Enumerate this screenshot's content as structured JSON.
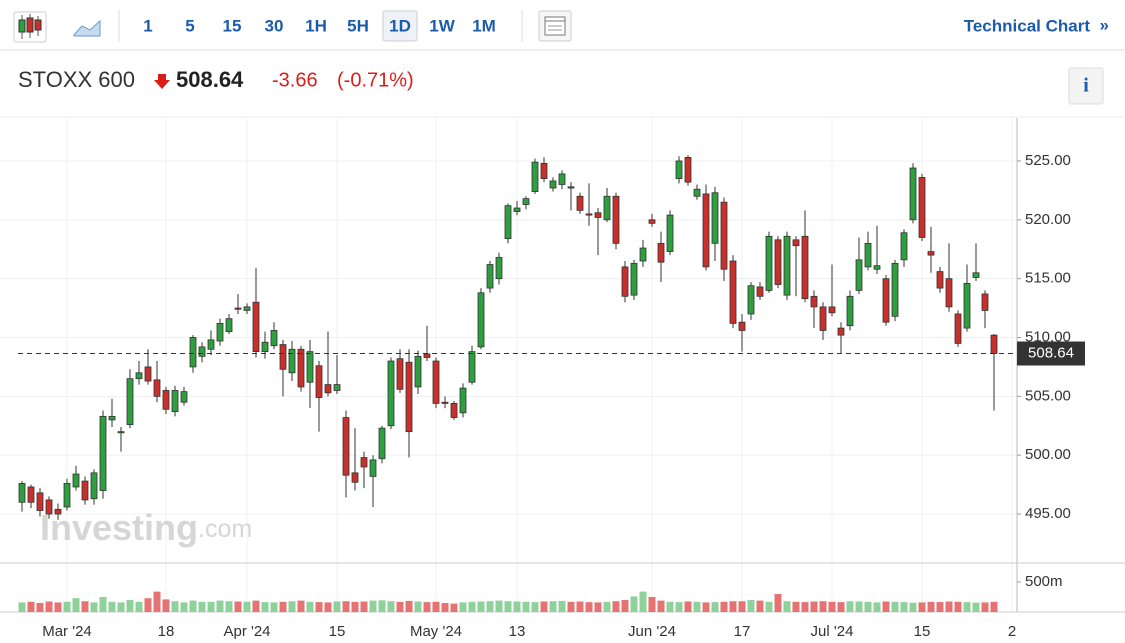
{
  "toolbar": {
    "intervals": [
      "1",
      "5",
      "15",
      "30",
      "1H",
      "5H",
      "1D",
      "1W",
      "1M"
    ],
    "active": "1D",
    "link": "Technical Chart",
    "link_arrow": "»"
  },
  "header": {
    "name": "STOXX 600",
    "price": "508.64",
    "change": "-3.66",
    "change_pct": "(-0.71%)",
    "info": "i"
  },
  "chart_data": {
    "type": "candlestick",
    "watermark": {
      "brand": "Investing",
      "suffix": ".com"
    },
    "up_color": "#2f9e3f",
    "down_color": "#c8302c",
    "volume_up_color": "#8fd19a",
    "volume_down_color": "#e57373",
    "grid": true,
    "last_line": true,
    "categories": [
      null,
      null,
      null,
      null,
      null,
      "Mar '24",
      null,
      null,
      null,
      null,
      null,
      null,
      null,
      null,
      null,
      null,
      "18",
      null,
      null,
      null,
      null,
      null,
      null,
      null,
      null,
      "Apr '24",
      null,
      null,
      null,
      null,
      null,
      null,
      null,
      null,
      null,
      "15",
      null,
      null,
      null,
      null,
      null,
      null,
      null,
      null,
      null,
      null,
      "May '24",
      null,
      null,
      null,
      null,
      null,
      null,
      null,
      null,
      "13",
      null,
      null,
      null,
      null,
      null,
      null,
      null,
      null,
      null,
      null,
      null,
      null,
      null,
      null,
      "Jun '24",
      null,
      null,
      null,
      null,
      null,
      null,
      null,
      null,
      null,
      "17",
      null,
      null,
      null,
      null,
      null,
      null,
      null,
      null,
      null,
      "Jul '24",
      null,
      null,
      null,
      null,
      null,
      null,
      null,
      null,
      null,
      "15",
      null,
      null,
      null,
      null,
      null,
      null,
      null,
      null,
      null,
      "2"
    ],
    "open": [
      496.0,
      497.3,
      496.8,
      496.2,
      495.4,
      495.6,
      497.3,
      497.8,
      496.3,
      497.0,
      503.0,
      501.9,
      502.6,
      506.5,
      507.5,
      506.4,
      505.5,
      503.7,
      504.5,
      507.5,
      508.4,
      509.0,
      509.7,
      510.5,
      512.5,
      512.3,
      513.0,
      508.8,
      509.3,
      509.4,
      507.0,
      509.0,
      506.2,
      507.6,
      506.0,
      505.5,
      503.2,
      498.5,
      499.8,
      498.2,
      499.7,
      502.5,
      508.2,
      507.9,
      505.8,
      508.6,
      508.0,
      504.5,
      504.4,
      503.6,
      506.2,
      509.2,
      514.2,
      515.0,
      518.4,
      520.7,
      521.3,
      522.4,
      524.8,
      522.7,
      523.0,
      522.8,
      522.0,
      520.5,
      520.6,
      520.0,
      522.0,
      516.0,
      513.6,
      516.5,
      520.0,
      518.0,
      517.3,
      523.5,
      525.3,
      522.0,
      522.2,
      518.0,
      521.5,
      516.5,
      511.3,
      512.0,
      514.3,
      514.0,
      518.3,
      513.6,
      518.3,
      518.6,
      513.5,
      512.6,
      512.6,
      510.8,
      511.0,
      514.0,
      516.0,
      515.8,
      515.0,
      511.8,
      516.6,
      520.0,
      523.6,
      517.3,
      515.6,
      515.0,
      512.0,
      510.8,
      515.1,
      513.7,
      510.2,
      null,
      null
    ],
    "high": [
      497.8,
      497.5,
      497.2,
      496.5,
      495.9,
      498.0,
      499.1,
      498.2,
      498.8,
      503.8,
      504.8,
      502.4,
      507.3,
      508.0,
      509.0,
      508.0,
      505.8,
      505.9,
      505.8,
      510.2,
      509.6,
      510.6,
      511.6,
      512.0,
      513.7,
      512.9,
      515.9,
      510.5,
      511.3,
      509.8,
      509.7,
      509.3,
      509.8,
      508.0,
      510.5,
      508.5,
      503.8,
      502.3,
      500.3,
      500.0,
      502.5,
      508.3,
      509.0,
      509.0,
      508.9,
      511.0,
      508.3,
      505.0,
      504.6,
      506.1,
      509.3,
      514.2,
      516.5,
      517.2,
      521.4,
      521.6,
      522.0,
      525.2,
      525.3,
      523.6,
      524.2,
      523.2,
      522.3,
      523.1,
      521.0,
      522.7,
      522.3,
      516.5,
      516.6,
      518.3,
      520.5,
      519.0,
      520.8,
      525.4,
      525.5,
      523.0,
      523.0,
      522.8,
      521.9,
      517.0,
      512.0,
      514.7,
      514.7,
      519.0,
      518.6,
      519.0,
      518.6,
      520.8,
      514.0,
      513.0,
      516.2,
      511.3,
      514.0,
      518.5,
      519.0,
      519.5,
      515.3,
      516.6,
      519.2,
      524.8,
      523.9,
      519.4,
      516.0,
      518.0,
      512.3,
      516.2,
      518.0,
      514.0,
      510.3,
      null,
      null
    ],
    "low": [
      495.2,
      495.5,
      494.8,
      494.6,
      494.5,
      495.3,
      497.0,
      495.8,
      495.8,
      496.3,
      502.4,
      500.3,
      502.3,
      506.0,
      506.0,
      504.5,
      503.5,
      503.3,
      504.2,
      507.0,
      507.9,
      508.5,
      509.3,
      510.3,
      512.0,
      512.0,
      508.3,
      508.2,
      509.0,
      505.0,
      506.3,
      505.4,
      504.0,
      502.0,
      505.0,
      505.2,
      496.4,
      497.0,
      497.2,
      495.6,
      499.3,
      502.2,
      505.3,
      499.8,
      505.2,
      508.0,
      504.0,
      504.0,
      503.0,
      503.2,
      506.0,
      509.0,
      513.8,
      514.5,
      518.0,
      520.4,
      520.9,
      522.2,
      523.2,
      522.4,
      522.6,
      520.8,
      520.5,
      519.5,
      517.0,
      519.8,
      517.5,
      513.0,
      513.2,
      516.0,
      519.4,
      514.7,
      517.0,
      523.1,
      522.9,
      521.7,
      515.7,
      516.5,
      514.8,
      510.8,
      508.8,
      511.5,
      513.2,
      513.8,
      514.2,
      513.2,
      513.5,
      513.0,
      510.8,
      509.8,
      511.8,
      508.6,
      510.6,
      513.7,
      515.7,
      515.4,
      511.0,
      511.4,
      516.0,
      519.7,
      518.2,
      515.5,
      513.8,
      512.2,
      509.2,
      510.5,
      514.8,
      510.8,
      503.8,
      null,
      null
    ],
    "close": [
      497.6,
      496.0,
      495.3,
      495.0,
      495.0,
      497.6,
      498.4,
      496.2,
      498.5,
      503.3,
      503.3,
      502.0,
      506.5,
      507.0,
      506.3,
      505.0,
      503.9,
      505.5,
      505.4,
      510.0,
      509.2,
      509.8,
      511.2,
      511.6,
      512.4,
      512.6,
      508.8,
      509.6,
      510.6,
      507.3,
      509.0,
      505.8,
      508.8,
      504.9,
      505.3,
      506.0,
      498.3,
      497.7,
      499.0,
      499.6,
      502.3,
      508.0,
      505.6,
      502.0,
      508.4,
      508.3,
      504.4,
      504.4,
      503.2,
      505.7,
      508.8,
      513.8,
      516.2,
      516.8,
      521.2,
      521.0,
      521.8,
      524.9,
      523.5,
      523.3,
      523.9,
      522.7,
      520.8,
      520.4,
      520.2,
      522.0,
      518.0,
      513.5,
      516.3,
      517.6,
      519.7,
      516.4,
      520.4,
      525.0,
      523.2,
      522.6,
      516.0,
      522.3,
      515.8,
      511.2,
      510.6,
      514.4,
      513.5,
      518.6,
      514.5,
      518.6,
      517.8,
      513.3,
      512.6,
      510.6,
      512.1,
      510.2,
      513.5,
      516.6,
      518.0,
      516.1,
      511.3,
      516.3,
      518.9,
      524.4,
      518.5,
      517.0,
      514.2,
      512.6,
      509.5,
      514.6,
      515.5,
      512.3,
      508.64,
      null,
      null
    ],
    "volume": [
      160,
      170,
      150,
      175,
      160,
      170,
      230,
      180,
      160,
      250,
      170,
      160,
      200,
      170,
      230,
      340,
      210,
      180,
      160,
      190,
      170,
      170,
      190,
      180,
      175,
      170,
      190,
      165,
      160,
      170,
      180,
      190,
      170,
      165,
      160,
      175,
      180,
      170,
      175,
      190,
      195,
      180,
      170,
      185,
      175,
      165,
      170,
      150,
      140,
      160,
      170,
      175,
      180,
      190,
      180,
      175,
      170,
      165,
      175,
      180,
      185,
      170,
      175,
      165,
      160,
      170,
      180,
      200,
      260,
      340,
      250,
      190,
      170,
      165,
      175,
      170,
      160,
      165,
      170,
      180,
      180,
      200,
      190,
      170,
      300,
      180,
      170,
      165,
      175,
      180,
      170,
      165,
      180,
      175,
      170,
      160,
      175,
      170,
      165,
      155,
      160,
      170,
      165,
      175,
      170,
      165,
      155,
      160,
      170,
      null,
      null
    ],
    "ylim": [
      490.84,
      528.65
    ],
    "yticks": [
      {
        "value": 495,
        "label": "495.00"
      },
      {
        "value": 500,
        "label": "500.00"
      },
      {
        "value": 505,
        "label": "505.00"
      },
      {
        "value": 510,
        "label": "510.00"
      },
      {
        "value": 515,
        "label": "515.00"
      },
      {
        "value": 520,
        "label": "520.00"
      },
      {
        "value": 525,
        "label": "525.00"
      }
    ],
    "volume_lim": [
      0,
      817
    ],
    "volume_ticks": [
      {
        "value": 500,
        "label": "500m"
      }
    ]
  }
}
